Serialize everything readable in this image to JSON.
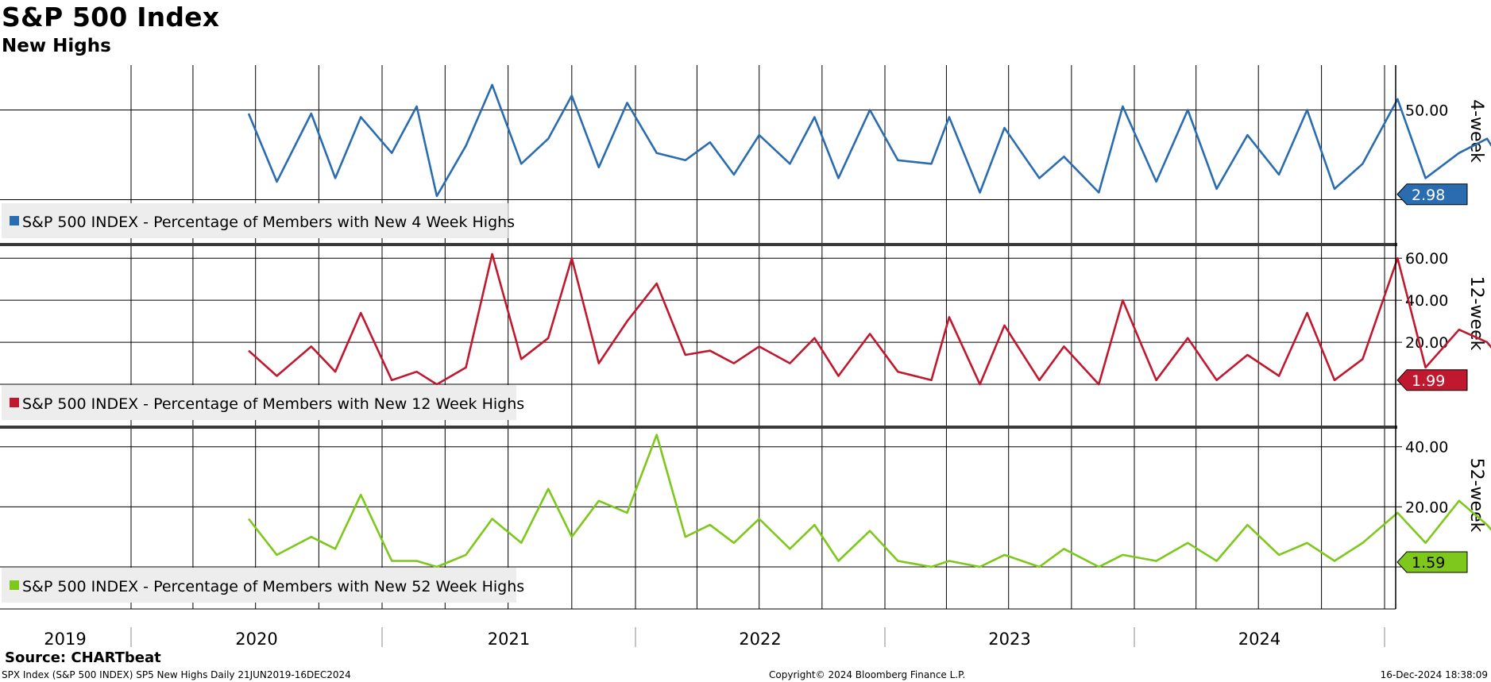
{
  "title": "S&P 500 Index",
  "subtitle": "New Highs",
  "source": "Source: CHARTbeat",
  "footer": {
    "left": "SPX Index (S&P 500 INDEX) SP5 New Highs  Daily 21JUN2019-16DEC2024",
    "center": "Copyright© 2024 Bloomberg Finance L.P.",
    "right": "16-Dec-2024 18:38:09"
  },
  "chart_data": {
    "type": "line",
    "x_axis": {
      "labels": [
        "2019",
        "2020",
        "2021",
        "2022",
        "2023",
        "2024"
      ],
      "range": [
        "2019-06-21",
        "2024-12-16"
      ],
      "quarterly_gridlines": true
    },
    "panels": [
      {
        "axis_title": "4-week",
        "color": "#2a6cb0",
        "legend": "S&P 500 INDEX - Percentage of Members with New 4 Week Highs",
        "last_value": "2.98",
        "y_ticks": [
          "50.00"
        ],
        "ylim": [
          -25,
          75
        ],
        "ref_lines": [
          0,
          50
        ],
        "series": {
          "dates": [
            "2019-06-21",
            "2019-08-01",
            "2019-09-20",
            "2019-10-25",
            "2019-12-01",
            "2020-01-15",
            "2020-02-20",
            "2020-03-20",
            "2020-05-01",
            "2020-06-08",
            "2020-07-20",
            "2020-08-28",
            "2020-10-01",
            "2020-11-09",
            "2020-12-20",
            "2021-02-01",
            "2021-03-15",
            "2021-04-20",
            "2021-05-25",
            "2021-07-01",
            "2021-08-15",
            "2021-09-20",
            "2021-10-25",
            "2021-12-10",
            "2022-01-20",
            "2022-03-10",
            "2022-04-05",
            "2022-05-20",
            "2022-06-25",
            "2022-08-15",
            "2022-09-20",
            "2022-11-10",
            "2022-12-15",
            "2023-02-02",
            "2023-03-20",
            "2023-05-01",
            "2023-06-15",
            "2023-07-31",
            "2023-09-10",
            "2023-10-20",
            "2023-11-30",
            "2024-01-20",
            "2024-03-01",
            "2024-04-19",
            "2024-05-30",
            "2024-07-15",
            "2024-08-20",
            "2024-09-30",
            "2024-11-11",
            "2024-12-16"
          ],
          "values": [
            48,
            10,
            48,
            12,
            46,
            26,
            52,
            2,
            30,
            64,
            20,
            34,
            58,
            18,
            54,
            26,
            22,
            32,
            14,
            36,
            20,
            46,
            12,
            50,
            22,
            20,
            46,
            4,
            40,
            12,
            24,
            4,
            52,
            10,
            50,
            6,
            36,
            14,
            50,
            6,
            20,
            56,
            12,
            26,
            34,
            6,
            52,
            20,
            44,
            2.98
          ]
        }
      },
      {
        "axis_title": "12-week",
        "color": "#c0182f",
        "legend": "S&P 500 INDEX - Percentage of Members with New 12 Week Highs",
        "last_value": "1.99",
        "y_ticks": [
          "60.00",
          "40.00",
          "20.00"
        ],
        "ylim": [
          -20,
          65
        ],
        "ref_lines": [
          0,
          20,
          40,
          60
        ],
        "series": {
          "dates": [
            "2019-06-21",
            "2019-08-01",
            "2019-09-20",
            "2019-10-25",
            "2019-12-01",
            "2020-01-15",
            "2020-02-20",
            "2020-03-20",
            "2020-05-01",
            "2020-06-08",
            "2020-07-20",
            "2020-08-28",
            "2020-10-01",
            "2020-11-09",
            "2020-12-20",
            "2021-02-01",
            "2021-03-15",
            "2021-04-20",
            "2021-05-25",
            "2021-07-01",
            "2021-08-15",
            "2021-09-20",
            "2021-10-25",
            "2021-12-10",
            "2022-01-20",
            "2022-03-10",
            "2022-04-05",
            "2022-05-20",
            "2022-06-25",
            "2022-08-15",
            "2022-09-20",
            "2022-11-10",
            "2022-12-15",
            "2023-02-02",
            "2023-03-20",
            "2023-05-01",
            "2023-06-15",
            "2023-07-31",
            "2023-09-10",
            "2023-10-20",
            "2023-11-30",
            "2024-01-20",
            "2024-03-01",
            "2024-04-19",
            "2024-05-30",
            "2024-07-15",
            "2024-08-20",
            "2024-09-30",
            "2024-11-11",
            "2024-12-16"
          ],
          "values": [
            16,
            4,
            18,
            6,
            34,
            2,
            6,
            0,
            8,
            62,
            12,
            22,
            60,
            10,
            30,
            48,
            14,
            16,
            10,
            18,
            10,
            22,
            4,
            24,
            6,
            2,
            32,
            0,
            28,
            2,
            18,
            0,
            40,
            2,
            22,
            2,
            14,
            4,
            34,
            2,
            12,
            60,
            8,
            26,
            20,
            2,
            26,
            10,
            34,
            1.99
          ]
        }
      },
      {
        "axis_title": "52-week",
        "color": "#7dc81a",
        "legend": "S&P 500 INDEX - Percentage of Members with New 52 Week Highs",
        "last_value": "1.59",
        "y_ticks": [
          "40.00",
          "20.00"
        ],
        "ylim": [
          -14,
          46
        ],
        "ref_lines": [
          0,
          20,
          40
        ],
        "series": {
          "dates": [
            "2019-06-21",
            "2019-08-01",
            "2019-09-20",
            "2019-10-25",
            "2019-12-01",
            "2020-01-15",
            "2020-02-20",
            "2020-03-20",
            "2020-05-01",
            "2020-06-08",
            "2020-07-20",
            "2020-08-28",
            "2020-10-01",
            "2020-11-09",
            "2020-12-20",
            "2021-02-01",
            "2021-03-15",
            "2021-04-20",
            "2021-05-25",
            "2021-07-01",
            "2021-08-15",
            "2021-09-20",
            "2021-10-25",
            "2021-12-10",
            "2022-01-20",
            "2022-03-10",
            "2022-04-05",
            "2022-05-20",
            "2022-06-25",
            "2022-08-15",
            "2022-09-20",
            "2022-11-10",
            "2022-12-15",
            "2023-02-02",
            "2023-03-20",
            "2023-05-01",
            "2023-06-15",
            "2023-07-31",
            "2023-09-10",
            "2023-10-20",
            "2023-11-30",
            "2024-01-20",
            "2024-03-01",
            "2024-04-19",
            "2024-05-30",
            "2024-07-15",
            "2024-08-20",
            "2024-09-30",
            "2024-11-11",
            "2024-12-16"
          ],
          "values": [
            16,
            4,
            10,
            6,
            24,
            2,
            2,
            0,
            4,
            16,
            8,
            26,
            10,
            22,
            18,
            44,
            10,
            14,
            8,
            16,
            6,
            14,
            2,
            12,
            2,
            0,
            2,
            0,
            4,
            0,
            6,
            0,
            4,
            2,
            8,
            2,
            14,
            4,
            8,
            2,
            8,
            18,
            8,
            22,
            14,
            2,
            18,
            8,
            26,
            1.59
          ]
        }
      }
    ]
  }
}
